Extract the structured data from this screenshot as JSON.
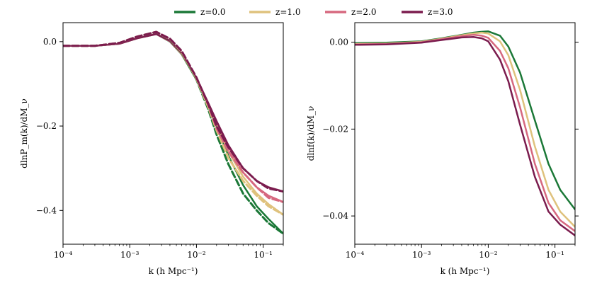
{
  "legend": [
    {
      "label": "z=0.0",
      "color": "#1b7837"
    },
    {
      "label": "z=1.0",
      "color": "#dfc27d"
    },
    {
      "label": "z=2.0",
      "color": "#d6687f"
    },
    {
      "label": "z=3.0",
      "color": "#7b1c4e"
    }
  ],
  "chart_data": [
    {
      "type": "line",
      "xscale": "log",
      "xlim": [
        0.0001,
        0.2
      ],
      "ylim": [
        -0.48,
        0.045
      ],
      "xlabel": "k (h Mpc⁻¹)",
      "ylabel": "dlnP_m(k)/dM_ν",
      "xticks": [
        {
          "value": 0.0001,
          "label": "10⁻⁴"
        },
        {
          "value": 0.001,
          "label": "10⁻³"
        },
        {
          "value": 0.01,
          "label": "10⁻²"
        },
        {
          "value": 0.1,
          "label": "10⁻¹"
        }
      ],
      "yticks": [
        {
          "value": 0.0,
          "label": "0.0"
        },
        {
          "value": -0.2,
          "label": "−0.2"
        },
        {
          "value": -0.4,
          "label": "−0.4"
        }
      ],
      "x": [
        0.0001,
        0.0003,
        0.0007,
        0.0013,
        0.0025,
        0.004,
        0.006,
        0.01,
        0.015,
        0.02,
        0.03,
        0.05,
        0.08,
        0.12,
        0.2
      ],
      "series": [
        {
          "name": "z=0.0",
          "style": "solid",
          "values": [
            -0.01,
            -0.01,
            -0.005,
            0.008,
            0.018,
            0.0,
            -0.03,
            -0.09,
            -0.15,
            -0.2,
            -0.27,
            -0.34,
            -0.39,
            -0.42,
            -0.455
          ]
        },
        {
          "name": "z=1.0",
          "style": "solid",
          "values": [
            -0.01,
            -0.01,
            -0.005,
            0.008,
            0.018,
            0.001,
            -0.029,
            -0.088,
            -0.148,
            -0.195,
            -0.26,
            -0.32,
            -0.36,
            -0.385,
            -0.41
          ]
        },
        {
          "name": "z=2.0",
          "style": "solid",
          "values": [
            -0.01,
            -0.01,
            -0.005,
            0.008,
            0.018,
            0.001,
            -0.028,
            -0.087,
            -0.146,
            -0.19,
            -0.25,
            -0.31,
            -0.345,
            -0.365,
            -0.38
          ]
        },
        {
          "name": "z=3.0",
          "style": "solid",
          "values": [
            -0.01,
            -0.01,
            -0.005,
            0.008,
            0.018,
            0.002,
            -0.027,
            -0.086,
            -0.145,
            -0.188,
            -0.245,
            -0.3,
            -0.33,
            -0.345,
            -0.355
          ]
        },
        {
          "name": "z=0.0",
          "style": "dashed",
          "values": [
            -0.01,
            -0.01,
            -0.003,
            0.012,
            0.023,
            0.005,
            -0.025,
            -0.09,
            -0.16,
            -0.22,
            -0.29,
            -0.36,
            -0.4,
            -0.43,
            -0.455
          ]
        },
        {
          "name": "z=1.0",
          "style": "dashed",
          "values": [
            -0.01,
            -0.01,
            -0.003,
            0.012,
            0.023,
            0.006,
            -0.024,
            -0.088,
            -0.155,
            -0.21,
            -0.275,
            -0.33,
            -0.365,
            -0.39,
            -0.41
          ]
        },
        {
          "name": "z=2.0",
          "style": "dashed",
          "values": [
            -0.01,
            -0.01,
            -0.003,
            0.012,
            0.023,
            0.006,
            -0.023,
            -0.086,
            -0.15,
            -0.205,
            -0.26,
            -0.31,
            -0.345,
            -0.37,
            -0.38
          ]
        },
        {
          "name": "z=3.0",
          "style": "dashed",
          "values": [
            -0.01,
            -0.01,
            -0.003,
            0.012,
            0.023,
            0.007,
            -0.022,
            -0.085,
            -0.148,
            -0.2,
            -0.25,
            -0.3,
            -0.33,
            -0.348,
            -0.355
          ]
        }
      ]
    },
    {
      "type": "line",
      "xscale": "log",
      "xlim": [
        0.0001,
        0.2
      ],
      "ylim": [
        -0.0465,
        0.0045
      ],
      "xlabel": "k (h Mpc⁻¹)",
      "ylabel": "dlnf(k)/dM_ν",
      "xticks": [
        {
          "value": 0.0001,
          "label": "10⁻⁴"
        },
        {
          "value": 0.001,
          "label": "10⁻³"
        },
        {
          "value": 0.01,
          "label": "10⁻²"
        },
        {
          "value": 0.1,
          "label": "10⁻¹"
        }
      ],
      "yticks": [
        {
          "value": 0.0,
          "label": "0.00"
        },
        {
          "value": -0.02,
          "label": "−0.02"
        },
        {
          "value": -0.04,
          "label": "−0.04"
        }
      ],
      "x": [
        0.0001,
        0.0003,
        0.001,
        0.002,
        0.004,
        0.006,
        0.008,
        0.01,
        0.015,
        0.02,
        0.03,
        0.05,
        0.08,
        0.12,
        0.2
      ],
      "series": [
        {
          "name": "z=0.0",
          "values": [
            -0.0002,
            -0.0001,
            0.0002,
            0.0009,
            0.0017,
            0.0022,
            0.0024,
            0.0025,
            0.0015,
            -0.001,
            -0.007,
            -0.018,
            -0.028,
            -0.034,
            -0.0385
          ]
        },
        {
          "name": "z=1.0",
          "values": [
            -0.0004,
            -0.0003,
            0.0001,
            0.0008,
            0.0016,
            0.002,
            0.0022,
            0.002,
            0.0002,
            -0.003,
            -0.011,
            -0.024,
            -0.034,
            -0.039,
            -0.0425
          ]
        },
        {
          "name": "z=2.0",
          "values": [
            -0.0005,
            -0.0004,
            0.0,
            0.0007,
            0.0014,
            0.0017,
            0.0015,
            0.001,
            -0.002,
            -0.006,
            -0.015,
            -0.028,
            -0.037,
            -0.041,
            -0.0435
          ]
        },
        {
          "name": "z=3.0",
          "values": [
            -0.0006,
            -0.0005,
            -0.0001,
            0.0005,
            0.0011,
            0.0012,
            0.0009,
            0.0002,
            -0.004,
            -0.009,
            -0.019,
            -0.031,
            -0.039,
            -0.042,
            -0.0445
          ]
        }
      ]
    }
  ]
}
